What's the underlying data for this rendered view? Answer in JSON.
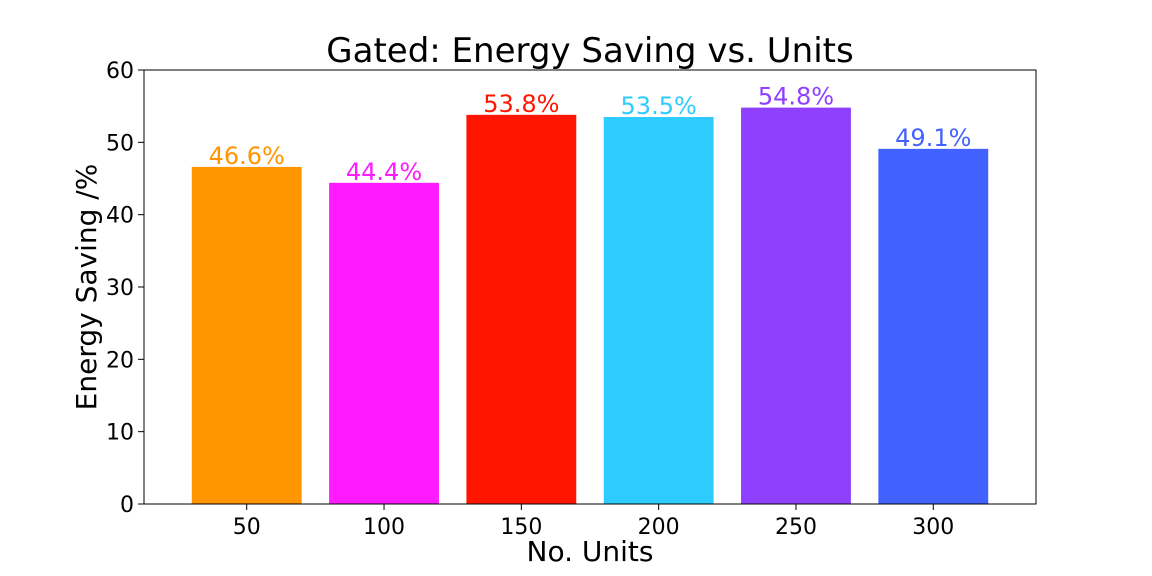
{
  "chart_data": {
    "type": "bar",
    "title": "Gated: Energy Saving vs. Units",
    "xlabel": "No. Units",
    "ylabel": "Energy Saving /%",
    "categories": [
      "50",
      "100",
      "150",
      "200",
      "250",
      "300"
    ],
    "values": [
      46.6,
      44.4,
      53.8,
      53.5,
      54.8,
      49.1
    ],
    "value_labels": [
      "46.6%",
      "44.4%",
      "53.8%",
      "53.5%",
      "54.8%",
      "49.1%"
    ],
    "colors": [
      "#ff9500",
      "#ff1aff",
      "#ff1500",
      "#2ecbff",
      "#8f40ff",
      "#4262ff"
    ],
    "ylim": [
      0,
      60
    ],
    "yticks": [
      0,
      10,
      20,
      30,
      40,
      50,
      60
    ],
    "grid": false,
    "legend": "none"
  }
}
